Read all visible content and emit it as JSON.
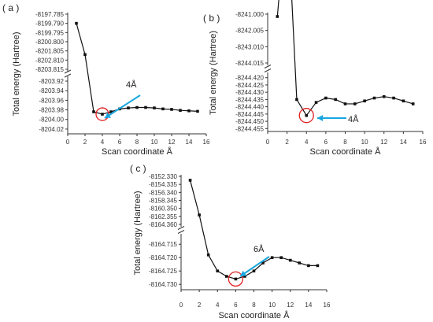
{
  "figure": {
    "panels": [
      {
        "label": "( a )",
        "xlabel": "Scan coordinate Å",
        "ylabel": "Total energy (Hartree)",
        "annotation": "4Å",
        "xticks": [
          "0",
          "2",
          "4",
          "6",
          "8",
          "10",
          "12",
          "14",
          "16"
        ],
        "yticks_upper": [
          "-8197.785",
          "-8199.790",
          "-8199.795",
          "-8200.800",
          "-8201.805",
          "-8202.810",
          "-8203.815"
        ],
        "yticks_lower": [
          "-8203.92",
          "-8203.94",
          "-8203.96",
          "-8203.98",
          "-8204.00",
          "-8204.02"
        ]
      },
      {
        "label": "( b )",
        "xlabel": "Scan coordinate Å",
        "ylabel": "Total energy (Hartree)",
        "annotation": "4Å",
        "xticks": [
          "0",
          "2",
          "4",
          "6",
          "8",
          "10",
          "12",
          "14",
          "16"
        ],
        "yticks_upper": [
          "-8241.000",
          "-8242.005",
          "-8243.010",
          "-8244.015"
        ],
        "yticks_lower": [
          "-8244.420",
          "-8244.425",
          "-8244.430",
          "-8244.435",
          "-8244.440",
          "-8244.445",
          "-8244.450",
          "-8244.455"
        ]
      },
      {
        "label": "( c )",
        "xlabel": "Scan coordinate Å",
        "ylabel": "Total energy (Hartree)",
        "annotation": "6Å",
        "xticks": [
          "0",
          "2",
          "4",
          "6",
          "8",
          "10",
          "12",
          "14",
          "16"
        ],
        "yticks_upper": [
          "-8152.330",
          "-8154.335",
          "-8156.340",
          "-8158.345",
          "-8160.350",
          "-8162.355",
          "-8164.360"
        ],
        "yticks_lower": [
          "-8164.715",
          "-8164.720",
          "-8164.725",
          "-8164.730"
        ]
      }
    ]
  },
  "chart_data": [
    {
      "type": "line",
      "title": "( a )",
      "xlabel": "Scan coordinate Å",
      "ylabel": "Total energy (Hartree)",
      "xlim": [
        0,
        16
      ],
      "broken_y_axis": true,
      "upper_ylim": [
        -8203.815,
        -8197.785
      ],
      "lower_ylim": [
        -8204.03,
        -8203.915
      ],
      "x": [
        1,
        2,
        3,
        4,
        5,
        6,
        7,
        8,
        9,
        10,
        11,
        12,
        13,
        14,
        15
      ],
      "y": [
        -8198.788,
        -8202.2,
        -8203.984,
        -8203.989,
        -8203.984,
        -8203.978,
        -8203.976,
        -8203.975,
        -8203.975,
        -8203.976,
        -8203.978,
        -8203.979,
        -8203.981,
        -8203.982,
        -8203.983
      ],
      "annotation": {
        "text": "4Å",
        "x": 4
      }
    },
    {
      "type": "line",
      "title": "( b )",
      "xlabel": "Scan coordinate Å",
      "ylabel": "Total energy (Hartree)",
      "xlim": [
        0,
        16
      ],
      "broken_y_axis": true,
      "upper_ylim": [
        -8244.015,
        -8240.9
      ],
      "lower_ylim": [
        -8244.457,
        -8244.418
      ],
      "x": [
        1,
        2,
        3,
        4,
        5,
        6,
        7,
        8,
        9,
        10,
        11,
        12,
        13,
        14,
        15
      ],
      "y": [
        -8241.05,
        -8244.3,
        -8244.435,
        -8244.446,
        -8244.437,
        -8244.434,
        -8244.435,
        -8244.438,
        -8244.438,
        -8244.436,
        -8244.434,
        -8244.433,
        -8244.434,
        -8244.436,
        -8244.438
      ],
      "annotation": {
        "text": "4Å",
        "x": 4
      }
    },
    {
      "type": "line",
      "title": "( c )",
      "xlabel": "Scan coordinate Å",
      "ylabel": "Total energy (Hartree)",
      "xlim": [
        0,
        16
      ],
      "broken_y_axis": true,
      "upper_ylim": [
        -8164.36,
        -8152.33
      ],
      "lower_ylim": [
        -8164.732,
        -8164.712
      ],
      "x": [
        1,
        2,
        3,
        4,
        5,
        6,
        7,
        8,
        9,
        10,
        11,
        12,
        13,
        14,
        15
      ],
      "y": [
        -8153.3,
        -8162.0,
        -8164.719,
        -8164.725,
        -8164.727,
        -8164.728,
        -8164.727,
        -8164.725,
        -8164.722,
        -8164.72,
        -8164.72,
        -8164.721,
        -8164.722,
        -8164.723,
        -8164.723
      ],
      "annotation": {
        "text": "6Å",
        "x": 6
      }
    }
  ],
  "colors": {
    "line": "#111111",
    "axis": "#333333",
    "highlight_circle": "#e02020",
    "arrow": "#19a7df"
  }
}
